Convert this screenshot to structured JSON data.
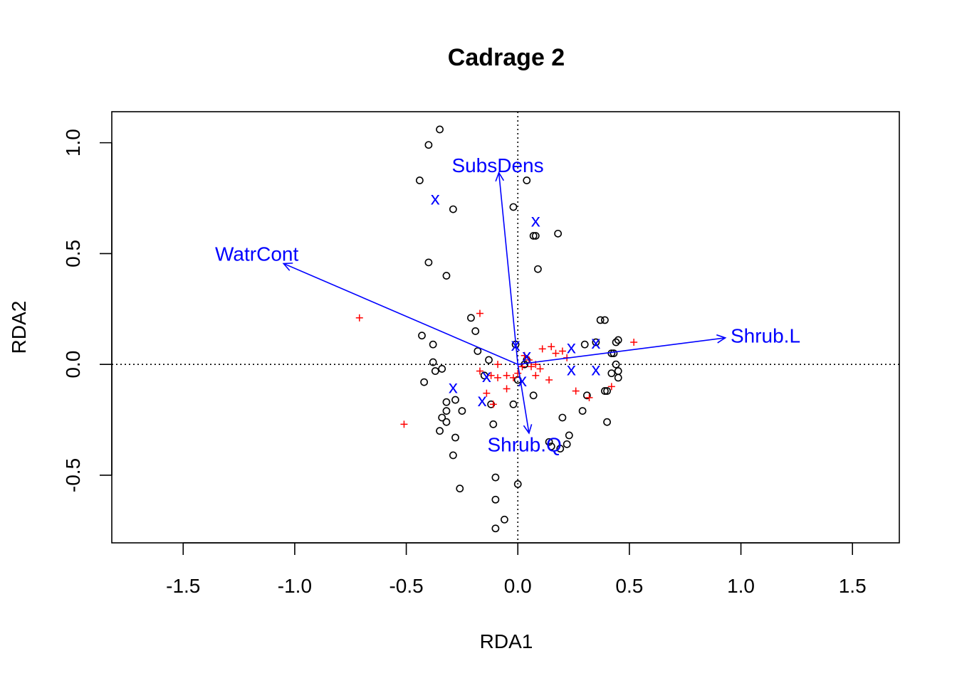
{
  "chart_data": {
    "type": "scatter",
    "title": "Cadrage 2",
    "xlabel": "RDA1",
    "ylabel": "RDA2",
    "xlim": [
      -1.82,
      1.71
    ],
    "ylim": [
      -0.805,
      1.14
    ],
    "x_ticks": [
      {
        "value": -1.5,
        "label": "-1.5"
      },
      {
        "value": -1.0,
        "label": "-1.0"
      },
      {
        "value": -0.5,
        "label": "-0.5"
      },
      {
        "value": 0.0,
        "label": "0.0"
      },
      {
        "value": 0.5,
        "label": "0.5"
      },
      {
        "value": 1.0,
        "label": "1.0"
      },
      {
        "value": 1.5,
        "label": "1.5"
      }
    ],
    "y_ticks": [
      {
        "value": -0.5,
        "label": "-0.5"
      },
      {
        "value": 0.0,
        "label": "0.0"
      },
      {
        "value": 0.5,
        "label": "0.5"
      },
      {
        "value": 1.0,
        "label": "1.0"
      }
    ],
    "reference_lines": {
      "x": 0,
      "y": 0,
      "style": "dotted"
    },
    "grid": false,
    "legend": "none",
    "colors": {
      "sites": "#000000",
      "species": "#ff0000",
      "constraints": "#0000ff",
      "axes": "#000000"
    },
    "series": [
      {
        "marker": "circle",
        "color": "#000000",
        "points": [
          [
            -0.35,
            1.06
          ],
          [
            -0.4,
            0.99
          ],
          [
            -0.44,
            0.83
          ],
          [
            -0.29,
            0.7
          ],
          [
            -0.4,
            0.46
          ],
          [
            -0.32,
            0.4
          ],
          [
            0.04,
            0.83
          ],
          [
            -0.02,
            0.71
          ],
          [
            0.07,
            0.58
          ],
          [
            0.08,
            0.58
          ],
          [
            0.18,
            0.59
          ],
          [
            0.09,
            0.43
          ],
          [
            -0.21,
            0.21
          ],
          [
            -0.19,
            0.15
          ],
          [
            -0.43,
            0.13
          ],
          [
            -0.38,
            0.09
          ],
          [
            -0.18,
            0.06
          ],
          [
            -0.38,
            0.01
          ],
          [
            -0.37,
            -0.03
          ],
          [
            -0.34,
            -0.02
          ],
          [
            -0.42,
            -0.08
          ],
          [
            -0.13,
            0.02
          ],
          [
            -0.15,
            -0.05
          ],
          [
            -0.01,
            0.09
          ],
          [
            0.04,
            0.02
          ],
          [
            0.37,
            0.2
          ],
          [
            0.39,
            0.2
          ],
          [
            0.3,
            0.09
          ],
          [
            0.35,
            0.1
          ],
          [
            0.45,
            0.11
          ],
          [
            0.44,
            0.1
          ],
          [
            0.42,
            0.05
          ],
          [
            0.43,
            0.05
          ],
          [
            0.44,
            0.0
          ],
          [
            0.45,
            -0.03
          ],
          [
            0.42,
            -0.04
          ],
          [
            0.45,
            -0.06
          ],
          [
            0.4,
            -0.12
          ],
          [
            0.39,
            -0.12
          ],
          [
            0.31,
            -0.14
          ],
          [
            0.29,
            -0.21
          ],
          [
            0.4,
            -0.26
          ],
          [
            0.2,
            -0.24
          ],
          [
            0.23,
            -0.32
          ],
          [
            0.07,
            -0.14
          ],
          [
            -0.02,
            -0.18
          ],
          [
            -0.32,
            -0.17
          ],
          [
            -0.28,
            -0.16
          ],
          [
            -0.32,
            -0.21
          ],
          [
            -0.34,
            -0.24
          ],
          [
            -0.32,
            -0.26
          ],
          [
            -0.25,
            -0.21
          ],
          [
            -0.35,
            -0.3
          ],
          [
            -0.28,
            -0.33
          ],
          [
            -0.29,
            -0.41
          ],
          [
            -0.12,
            -0.18
          ],
          [
            -0.11,
            -0.27
          ],
          [
            0.14,
            -0.35
          ],
          [
            0.15,
            -0.37
          ],
          [
            0.19,
            -0.38
          ],
          [
            0.22,
            -0.36
          ],
          [
            -0.1,
            -0.51
          ],
          [
            0.0,
            -0.54
          ],
          [
            -0.26,
            -0.56
          ],
          [
            -0.1,
            -0.61
          ],
          [
            -0.06,
            -0.7
          ],
          [
            -0.1,
            -0.74
          ],
          [
            0.03,
            0.0
          ],
          [
            0.0,
            -0.07
          ]
        ]
      },
      {
        "marker": "plus",
        "color": "#ff0000",
        "points": [
          [
            -0.71,
            0.21
          ],
          [
            -0.17,
            0.23
          ],
          [
            0.52,
            0.1
          ],
          [
            -0.51,
            -0.27
          ],
          [
            0.11,
            0.07
          ],
          [
            0.15,
            0.08
          ],
          [
            0.17,
            0.05
          ],
          [
            0.2,
            0.06
          ],
          [
            0.22,
            0.03
          ],
          [
            0.03,
            0.04
          ],
          [
            0.05,
            0.02
          ],
          [
            0.08,
            0.0
          ],
          [
            0.06,
            -0.01
          ],
          [
            0.02,
            -0.01
          ],
          [
            0.1,
            -0.02
          ],
          [
            -0.05,
            -0.05
          ],
          [
            -0.02,
            -0.06
          ],
          [
            -0.05,
            -0.11
          ],
          [
            -0.14,
            -0.13
          ],
          [
            -0.17,
            -0.03
          ],
          [
            -0.12,
            -0.05
          ],
          [
            -0.09,
            0.0
          ],
          [
            0.14,
            -0.07
          ],
          [
            0.26,
            -0.12
          ],
          [
            0.32,
            -0.15
          ],
          [
            0.42,
            -0.1
          ],
          [
            0.08,
            -0.05
          ],
          [
            0.0,
            -0.04
          ],
          [
            -0.09,
            -0.06
          ],
          [
            -0.11,
            -0.18
          ]
        ]
      },
      {
        "marker": "x",
        "color": "#0000ff",
        "points": [
          [
            -0.37,
            0.75
          ],
          [
            0.08,
            0.65
          ],
          [
            -0.01,
            0.09
          ],
          [
            0.04,
            0.04
          ],
          [
            0.24,
            0.08
          ],
          [
            0.35,
            0.1
          ],
          [
            0.24,
            -0.02
          ],
          [
            0.35,
            -0.02
          ],
          [
            0.02,
            -0.07
          ],
          [
            -0.14,
            -0.05
          ],
          [
            -0.29,
            -0.1
          ],
          [
            -0.16,
            -0.16
          ]
        ]
      }
    ],
    "arrows": [
      {
        "label": "SubsDens",
        "x": -0.085,
        "y": 0.865,
        "label_x": -0.09,
        "label_y": 0.9
      },
      {
        "label": "WatrCont",
        "x": -1.05,
        "y": 0.455,
        "label_x": -1.17,
        "label_y": 0.5
      },
      {
        "label": "Shrub.L",
        "x": 0.93,
        "y": 0.12,
        "label_x": 1.11,
        "label_y": 0.13
      },
      {
        "label": "Shrub.Q",
        "x": 0.05,
        "y": -0.31,
        "label_x": 0.03,
        "label_y": -0.36
      }
    ]
  }
}
